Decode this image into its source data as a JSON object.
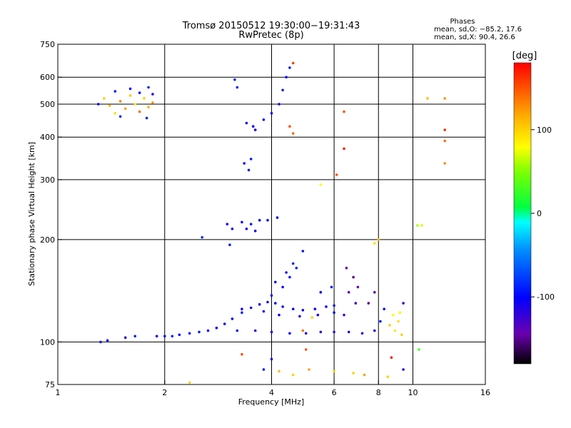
{
  "chart_data": {
    "type": "scatter",
    "title": "Tromsø 20150512 19:30:00−19:31:43",
    "subtitle": "RwPretec (8p)",
    "xlabel": "Frequency [MHz]",
    "ylabel": "Stationary phase Virtual Height [km]",
    "x_scale": "log2",
    "y_scale": "log",
    "xlim": [
      1,
      16
    ],
    "ylim": [
      75,
      750
    ],
    "xticks": [
      1,
      2,
      4,
      6,
      8,
      10,
      16
    ],
    "yticks": [
      75,
      100,
      200,
      300,
      400,
      500,
      600,
      750
    ],
    "vertical_gridlines": [
      2,
      4,
      6,
      8,
      10
    ],
    "horizontal_gridlines": [
      100,
      200,
      300,
      400,
      500,
      600
    ],
    "phases_box": {
      "title": "Phases",
      "line_o": "mean, sd,O: −85.2, 17.6",
      "line_x": "mean, sd,X:  90.4, 26.6"
    },
    "colorbar": {
      "label": "[deg]",
      "range": [
        -180,
        180
      ],
      "ticks": [
        100,
        0,
        -100
      ],
      "colormap": "rainbow (black→purple→blue→cyan→green→yellow→orange→red)"
    },
    "series": [
      {
        "values": [
          [
            1.32,
            100,
            -95
          ],
          [
            1.38,
            101,
            -100
          ],
          [
            1.55,
            103,
            -105
          ],
          [
            1.65,
            104,
            -90
          ],
          [
            1.9,
            104,
            -100
          ],
          [
            2.0,
            104,
            -95
          ],
          [
            2.1,
            104,
            -90
          ],
          [
            2.2,
            105,
            -100
          ],
          [
            2.35,
            106,
            -95
          ],
          [
            2.5,
            107,
            -90
          ],
          [
            2.65,
            108,
            -105
          ],
          [
            2.8,
            110,
            -100
          ],
          [
            2.95,
            113,
            -95
          ],
          [
            3.1,
            117,
            -100
          ],
          [
            3.3,
            122,
            -90
          ],
          [
            3.5,
            126,
            -95
          ],
          [
            3.7,
            129,
            -100
          ],
          [
            3.9,
            131,
            -105
          ],
          [
            4.1,
            130,
            -100
          ],
          [
            4.3,
            127,
            -95
          ],
          [
            4.6,
            125,
            -110
          ],
          [
            4.9,
            124,
            -100
          ],
          [
            5.3,
            125,
            -105
          ],
          [
            5.7,
            127,
            -100
          ],
          [
            6.0,
            128,
            -95
          ],
          [
            3.2,
            108,
            -100
          ],
          [
            3.6,
            108,
            -110
          ],
          [
            4.0,
            107,
            -105
          ],
          [
            4.5,
            106,
            -100
          ],
          [
            5.0,
            106,
            -110
          ],
          [
            5.5,
            107,
            -115
          ],
          [
            6.0,
            107,
            -120
          ],
          [
            6.6,
            107,
            -110
          ],
          [
            7.2,
            106,
            -115
          ],
          [
            7.8,
            108,
            -105
          ],
          [
            8.1,
            115,
            -100
          ],
          [
            8.3,
            125,
            -95
          ],
          [
            3.3,
            125,
            -110
          ],
          [
            3.8,
            123,
            -105
          ],
          [
            4.2,
            120,
            -100
          ],
          [
            4.8,
            119,
            -110
          ],
          [
            5.4,
            120,
            -105
          ],
          [
            6.0,
            122,
            -100
          ],
          [
            4.0,
            137,
            -90
          ],
          [
            4.3,
            145,
            -100
          ],
          [
            4.5,
            155,
            -95
          ],
          [
            4.7,
            165,
            -85
          ],
          [
            4.9,
            185,
            -95
          ],
          [
            5.5,
            140,
            -100
          ],
          [
            5.9,
            145,
            -95
          ],
          [
            4.1,
            150,
            -100
          ],
          [
            4.4,
            160,
            -95
          ],
          [
            4.6,
            170,
            -90
          ],
          [
            3.0,
            222,
            -95
          ],
          [
            3.3,
            225,
            -100
          ],
          [
            3.5,
            222,
            -90
          ],
          [
            3.7,
            228,
            -100
          ],
          [
            3.9,
            228,
            -95
          ],
          [
            4.15,
            232,
            -100
          ],
          [
            3.1,
            215,
            -110
          ],
          [
            3.4,
            215,
            -100
          ],
          [
            3.6,
            212,
            -105
          ],
          [
            2.55,
            203,
            -80
          ],
          [
            3.05,
            193,
            -90
          ],
          [
            3.15,
            590,
            -85
          ],
          [
            3.2,
            560,
            -90
          ],
          [
            3.55,
            430,
            -100
          ],
          [
            3.8,
            450,
            -95
          ],
          [
            4.0,
            470,
            -100
          ],
          [
            4.2,
            500,
            -100
          ],
          [
            4.3,
            550,
            -95
          ],
          [
            4.4,
            600,
            -100
          ],
          [
            4.5,
            640,
            -90
          ],
          [
            3.4,
            440,
            -100
          ],
          [
            3.6,
            420,
            -105
          ],
          [
            3.35,
            335,
            -100
          ],
          [
            3.45,
            320,
            -95
          ],
          [
            3.5,
            345,
            -90
          ],
          [
            6.5,
            165,
            -140
          ],
          [
            6.8,
            155,
            -150
          ],
          [
            6.6,
            140,
            -135
          ],
          [
            6.9,
            130,
            -120
          ],
          [
            7.0,
            145,
            -145
          ],
          [
            6.4,
            120,
            -130
          ],
          [
            7.5,
            130,
            -150
          ],
          [
            7.8,
            140,
            -145
          ],
          [
            1.35,
            520,
            100
          ],
          [
            1.4,
            495,
            110
          ],
          [
            1.45,
            470,
            95
          ],
          [
            1.5,
            510,
            130
          ],
          [
            1.55,
            485,
            120
          ],
          [
            1.6,
            530,
            105
          ],
          [
            1.65,
            500,
            90
          ],
          [
            1.7,
            475,
            140
          ],
          [
            1.75,
            520,
            100
          ],
          [
            1.8,
            490,
            115
          ],
          [
            1.85,
            505,
            125
          ],
          [
            1.45,
            545,
            -90
          ],
          [
            1.6,
            555,
            -100
          ],
          [
            1.7,
            540,
            -95
          ],
          [
            1.8,
            560,
            -90
          ],
          [
            1.85,
            535,
            -110
          ],
          [
            1.3,
            500,
            -100
          ],
          [
            1.5,
            460,
            -85
          ],
          [
            1.78,
            455,
            -95
          ],
          [
            8.6,
            112,
            100
          ],
          [
            8.9,
            108,
            90
          ],
          [
            9.1,
            115,
            95
          ],
          [
            9.2,
            122,
            85
          ],
          [
            9.3,
            105,
            100
          ],
          [
            8.8,
            120,
            80
          ],
          [
            9.4,
            130,
            -120
          ],
          [
            10.3,
            220,
            60
          ],
          [
            10.6,
            220,
            70
          ],
          [
            4.6,
            660,
            160
          ],
          [
            4.5,
            430,
            150
          ],
          [
            4.6,
            410,
            140
          ],
          [
            6.4,
            475,
            150
          ],
          [
            6.4,
            370,
            170
          ],
          [
            12.3,
            420,
            165
          ],
          [
            12.3,
            390,
            140
          ],
          [
            12.3,
            335,
            130
          ],
          [
            11.0,
            520,
            110
          ],
          [
            12.3,
            520,
            125
          ],
          [
            6.1,
            310,
            150
          ],
          [
            5.5,
            290,
            80
          ],
          [
            7.8,
            195,
            90
          ],
          [
            8.0,
            200,
            110
          ],
          [
            4.2,
            82,
            110
          ],
          [
            4.6,
            80,
            100
          ],
          [
            5.1,
            83,
            120
          ],
          [
            6.0,
            82,
            100
          ],
          [
            6.8,
            81,
            100
          ],
          [
            7.3,
            80,
            120
          ],
          [
            8.5,
            79,
            100
          ],
          [
            2.35,
            76,
            100
          ],
          [
            4.0,
            89,
            -100
          ],
          [
            3.8,
            83,
            -95
          ],
          [
            9.4,
            83,
            -110
          ],
          [
            3.3,
            92,
            150
          ],
          [
            5.0,
            95,
            150
          ],
          [
            4.9,
            108,
            140
          ],
          [
            5.2,
            118,
            100
          ],
          [
            8.7,
            90,
            170
          ],
          [
            10.4,
            95,
            30
          ]
        ]
      }
    ]
  }
}
